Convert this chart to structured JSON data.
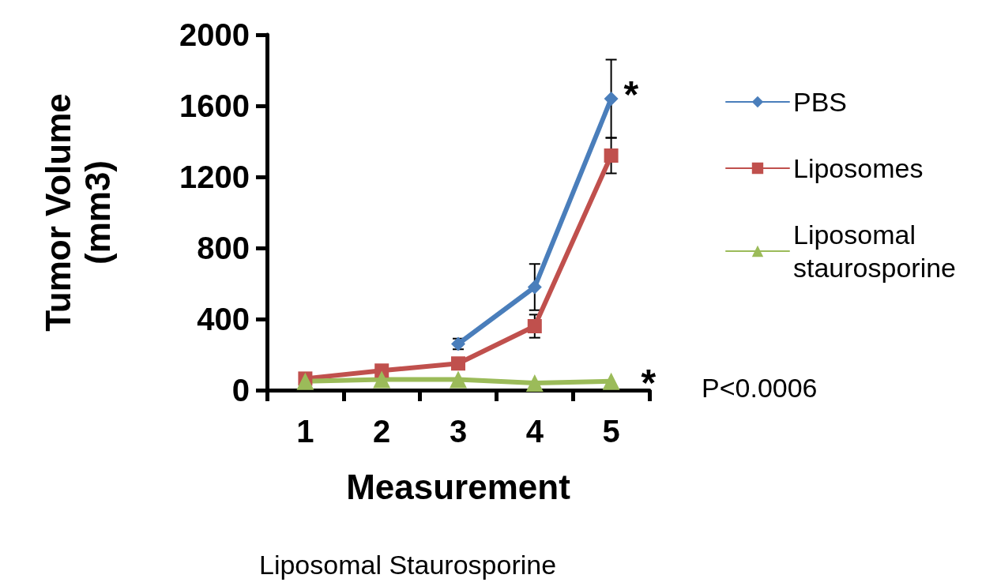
{
  "chart_data": {
    "type": "line",
    "xlabel": "Measurement",
    "ylabel": "Tumor Volume\n(mm3)",
    "categories": [
      "1",
      "2",
      "3",
      "4",
      "5"
    ],
    "series": [
      {
        "name": "PBS",
        "color": "#4a7ebb",
        "marker": "diamond",
        "values": [
          null,
          null,
          260,
          580,
          1640
        ],
        "errors": [
          null,
          null,
          30,
          130,
          220
        ]
      },
      {
        "name": "Liposomes",
        "color": "#c0504d",
        "marker": "square",
        "values": [
          65,
          110,
          150,
          360,
          1320
        ],
        "errors": [
          null,
          null,
          null,
          65,
          100
        ]
      },
      {
        "name": "Liposomal\nstaurosporine",
        "color": "#9bbb59",
        "marker": "triangle",
        "values": [
          50,
          60,
          60,
          40,
          50
        ]
      }
    ],
    "ylim": [
      0,
      2000
    ],
    "yticks": [
      0,
      400,
      800,
      {
        "value": 1200,
        "label": "1200"
      },
      {
        "value": 1600,
        "label": "1600"
      },
      {
        "value": 2000,
        "label": "2000"
      }
    ],
    "grid": false,
    "legend": "right",
    "line_style": "solid",
    "annotations": [
      {
        "text": "*",
        "x": "5",
        "y": 1640
      },
      {
        "text": "*",
        "x": "5",
        "y": 50
      },
      "P<0.0006",
      "Liposomal Staurosporine"
    ]
  }
}
